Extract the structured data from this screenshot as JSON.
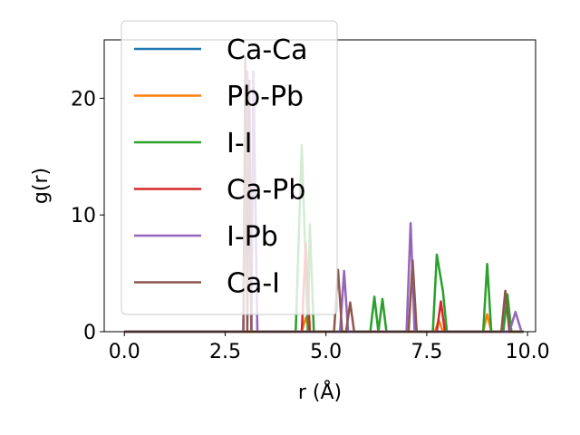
{
  "chart_data": {
    "type": "line",
    "xlabel": "r (Å)",
    "ylabel": "g(r)",
    "xlim": [
      -0.5,
      10.2
    ],
    "ylim": [
      0,
      25
    ],
    "xticks": [
      0.0,
      2.5,
      5.0,
      7.5,
      10.0
    ],
    "xtick_labels": [
      "0.0",
      "2.5",
      "5.0",
      "7.5",
      "10.0"
    ],
    "yticks": [
      0,
      10,
      20
    ],
    "ytick_labels": [
      "0",
      "10",
      "20"
    ],
    "grid": false,
    "legend_position": "upper-left",
    "series": [
      {
        "name": "Ca-Ca",
        "color": "#1f77b4",
        "x": [
          0.0,
          9.9
        ],
        "y": [
          0.0,
          0.0
        ]
      },
      {
        "name": "Pb-Pb",
        "color": "#ff7f0e",
        "x": [
          0.0,
          4.4,
          4.5,
          4.6,
          7.7,
          7.8,
          7.9,
          8.9,
          9.0,
          9.1,
          9.9
        ],
        "y": [
          0.0,
          0.0,
          1.2,
          0.0,
          0.0,
          1.0,
          0.0,
          0.0,
          1.5,
          0.0,
          0.0
        ]
      },
      {
        "name": "I-I",
        "color": "#2ca02c",
        "x": [
          0.0,
          4.25,
          4.4,
          4.55,
          4.6,
          4.7,
          6.1,
          6.2,
          6.3,
          6.4,
          6.5,
          7.65,
          7.75,
          7.9,
          8.0,
          8.9,
          9.0,
          9.1,
          9.4,
          9.5,
          9.6,
          9.9
        ],
        "y": [
          0.0,
          0.0,
          16.0,
          0.0,
          9.2,
          0.0,
          0.0,
          3.0,
          0.0,
          2.8,
          0.0,
          0.0,
          6.6,
          3.5,
          0.0,
          0.0,
          5.8,
          0.0,
          0.0,
          3.2,
          0.0,
          0.0
        ],
        "overlay_alpha": 0.2
      },
      {
        "name": "Ca-Pb",
        "color": "#d62728",
        "x": [
          0.0,
          4.4,
          4.5,
          4.6,
          7.75,
          7.85,
          7.95,
          9.9
        ],
        "y": [
          0.0,
          0.0,
          7.6,
          0.0,
          0.0,
          2.6,
          0.0,
          0.0
        ]
      },
      {
        "name": "I-Pb",
        "color": "#9467bd",
        "x": [
          0.0,
          2.95,
          3.05,
          3.15,
          3.2,
          3.3,
          5.35,
          5.45,
          5.55,
          7.0,
          7.1,
          7.2,
          9.55,
          9.7,
          9.85,
          9.9
        ],
        "y": [
          0.0,
          0.0,
          22.3,
          0.0,
          22.3,
          0.0,
          0.0,
          5.2,
          0.0,
          0.0,
          9.3,
          0.0,
          0.0,
          1.7,
          0.0,
          0.0
        ],
        "overlay_alpha": 0.2
      },
      {
        "name": "Ca-I",
        "color": "#8c564b",
        "x": [
          0.0,
          2.95,
          3.0,
          3.05,
          3.1,
          3.15,
          5.2,
          5.3,
          5.4,
          5.5,
          5.6,
          5.7,
          7.05,
          7.15,
          7.25,
          9.35,
          9.45,
          9.55,
          9.9
        ],
        "y": [
          0.0,
          0.0,
          23.5,
          0.0,
          21.5,
          0.0,
          0.0,
          5.3,
          0.0,
          0.0,
          2.5,
          0.0,
          0.0,
          6.1,
          0.0,
          0.0,
          3.5,
          0.0,
          0.0
        ]
      }
    ]
  }
}
